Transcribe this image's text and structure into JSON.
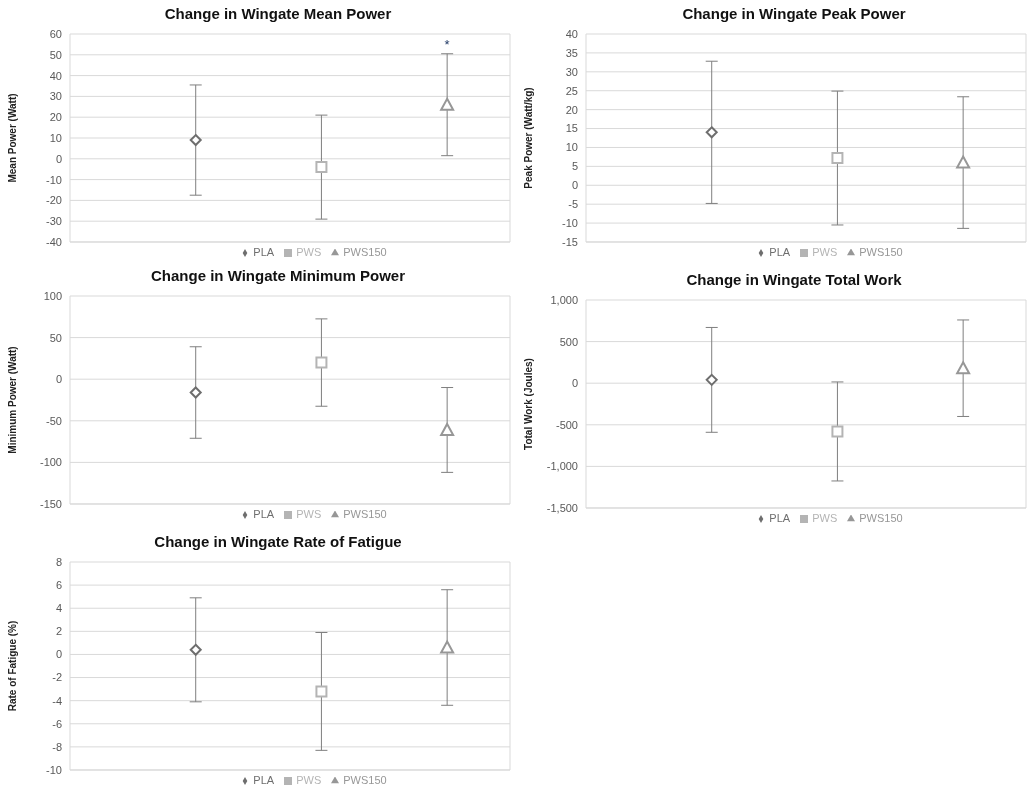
{
  "chart_data": [
    {
      "type": "scatter",
      "title": "Change in Wingate Mean Power",
      "ylabel": "Mean Power (Watt)",
      "categories": [
        null,
        null,
        null,
        null,
        null,
        null
      ],
      "ylim": [
        -40,
        60
      ],
      "yticks": [
        -40,
        -30,
        -20,
        -10,
        0,
        10,
        20,
        30,
        40,
        50,
        60
      ],
      "tick_labels": "y",
      "grid": true,
      "legend": "bottom",
      "series": [
        {
          "name": "PLA",
          "color": "#6e6e6e",
          "marker": "diamond",
          "values": [
            null,
            9,
            null,
            null,
            null,
            null
          ],
          "errors": [
            null,
            26.5,
            null,
            null,
            null,
            null
          ]
        },
        {
          "name": "PWS",
          "color": "#b4b4b4",
          "marker": "square",
          "values": [
            null,
            null,
            null,
            -4,
            null,
            null
          ],
          "errors": [
            null,
            null,
            null,
            25,
            null,
            null
          ]
        },
        {
          "name": "PWS150",
          "color": "#979797",
          "marker": "triangle",
          "values": [
            null,
            null,
            null,
            null,
            null,
            26
          ],
          "errors": [
            null,
            null,
            null,
            null,
            null,
            24.5
          ]
        }
      ],
      "annotations": [
        "*"
      ]
    },
    {
      "type": "scatter",
      "title": "Change in Wingate Peak Power",
      "ylabel": "Peak Power (Watt/kg)",
      "categories": [
        null,
        null,
        null,
        null,
        null,
        null
      ],
      "ylim": [
        -15,
        40
      ],
      "yticks": [
        -15,
        -10,
        -5,
        0,
        5,
        10,
        15,
        20,
        25,
        30,
        35,
        40
      ],
      "tick_labels": "y",
      "grid": true,
      "legend": "bottom",
      "series": [
        {
          "name": "PLA",
          "color": "#6e6e6e",
          "marker": "diamond",
          "values": [
            null,
            14,
            null,
            null,
            null,
            null
          ],
          "errors": [
            null,
            18.8,
            null,
            null,
            null,
            null
          ]
        },
        {
          "name": "PWS",
          "color": "#b4b4b4",
          "marker": "square",
          "values": [
            null,
            null,
            null,
            7.2,
            null,
            null
          ],
          "errors": [
            null,
            null,
            null,
            17.7,
            null,
            null
          ]
        },
        {
          "name": "PWS150",
          "color": "#979797",
          "marker": "triangle",
          "values": [
            null,
            null,
            null,
            null,
            null,
            6
          ],
          "errors": [
            null,
            null,
            null,
            null,
            null,
            17.4
          ]
        }
      ]
    },
    {
      "type": "scatter",
      "title": "Change in Wingate Minimum Power",
      "ylabel": "Minimum Power (Watt)",
      "categories": [
        null,
        null,
        null,
        null,
        null,
        null
      ],
      "ylim": [
        -150,
        100
      ],
      "yticks": [
        -150,
        -100,
        -50,
        0,
        50,
        100
      ],
      "tick_labels": "y",
      "grid": true,
      "legend": "bottom",
      "series": [
        {
          "name": "PLA",
          "color": "#6e6e6e",
          "marker": "diamond",
          "values": [
            null,
            -16,
            null,
            null,
            null,
            null
          ],
          "errors": [
            null,
            55,
            null,
            null,
            null,
            null
          ]
        },
        {
          "name": "PWS",
          "color": "#b4b4b4",
          "marker": "square",
          "values": [
            null,
            null,
            null,
            20,
            null,
            null
          ],
          "errors": [
            null,
            null,
            null,
            52.5,
            null,
            null
          ]
        },
        {
          "name": "PWS150",
          "color": "#979797",
          "marker": "triangle",
          "values": [
            null,
            null,
            null,
            null,
            null,
            -61
          ],
          "errors": [
            null,
            null,
            null,
            null,
            null,
            51
          ]
        }
      ]
    },
    {
      "type": "scatter",
      "title": "Change in Wingate Total Work",
      "ylabel": "Total Work (Joules)",
      "categories": [
        null,
        null,
        null,
        null,
        null,
        null
      ],
      "ylim": [
        -1500,
        1000
      ],
      "yticks": [
        {
          "value": -1500,
          "label": "-1,500"
        },
        {
          "value": -1000,
          "label": "-1,000"
        },
        -500,
        0,
        500,
        {
          "value": 1000,
          "label": "1,000"
        }
      ],
      "tick_labels": "y",
      "grid": true,
      "legend": "bottom",
      "series": [
        {
          "name": "PLA",
          "color": "#6e6e6e",
          "marker": "diamond",
          "values": [
            null,
            40,
            null,
            null,
            null,
            null
          ],
          "errors": [
            null,
            630,
            null,
            null,
            null,
            null
          ]
        },
        {
          "name": "PWS",
          "color": "#b4b4b4",
          "marker": "square",
          "values": [
            null,
            null,
            null,
            -580,
            null,
            null
          ],
          "errors": [
            null,
            null,
            null,
            595,
            null,
            null
          ]
        },
        {
          "name": "PWS150",
          "color": "#979797",
          "marker": "triangle",
          "values": [
            null,
            null,
            null,
            null,
            null,
            180
          ],
          "errors": [
            null,
            null,
            null,
            null,
            null,
            580
          ]
        }
      ]
    },
    {
      "type": "scatter",
      "title": "Change in Wingate Rate of Fatigue",
      "ylabel": "Rate of Fatigue (%)",
      "categories": [
        null,
        null,
        null,
        null,
        null,
        null
      ],
      "ylim": [
        -10,
        8
      ],
      "yticks": [
        -10,
        -8,
        -6,
        -4,
        -2,
        0,
        2,
        4,
        6,
        8
      ],
      "tick_labels": "y",
      "grid": true,
      "legend": "bottom",
      "series": [
        {
          "name": "PLA",
          "color": "#6e6e6e",
          "marker": "diamond",
          "values": [
            null,
            0.4,
            null,
            null,
            null,
            null
          ],
          "errors": [
            null,
            4.5,
            null,
            null,
            null,
            null
          ]
        },
        {
          "name": "PWS",
          "color": "#b4b4b4",
          "marker": "square",
          "values": [
            null,
            null,
            null,
            -3.2,
            null,
            null
          ],
          "errors": [
            null,
            null,
            null,
            5.1,
            null,
            null
          ]
        },
        {
          "name": "PWS150",
          "color": "#979797",
          "marker": "triangle",
          "values": [
            null,
            null,
            null,
            null,
            null,
            0.6
          ],
          "errors": [
            null,
            null,
            null,
            null,
            null,
            5
          ]
        }
      ]
    }
  ]
}
